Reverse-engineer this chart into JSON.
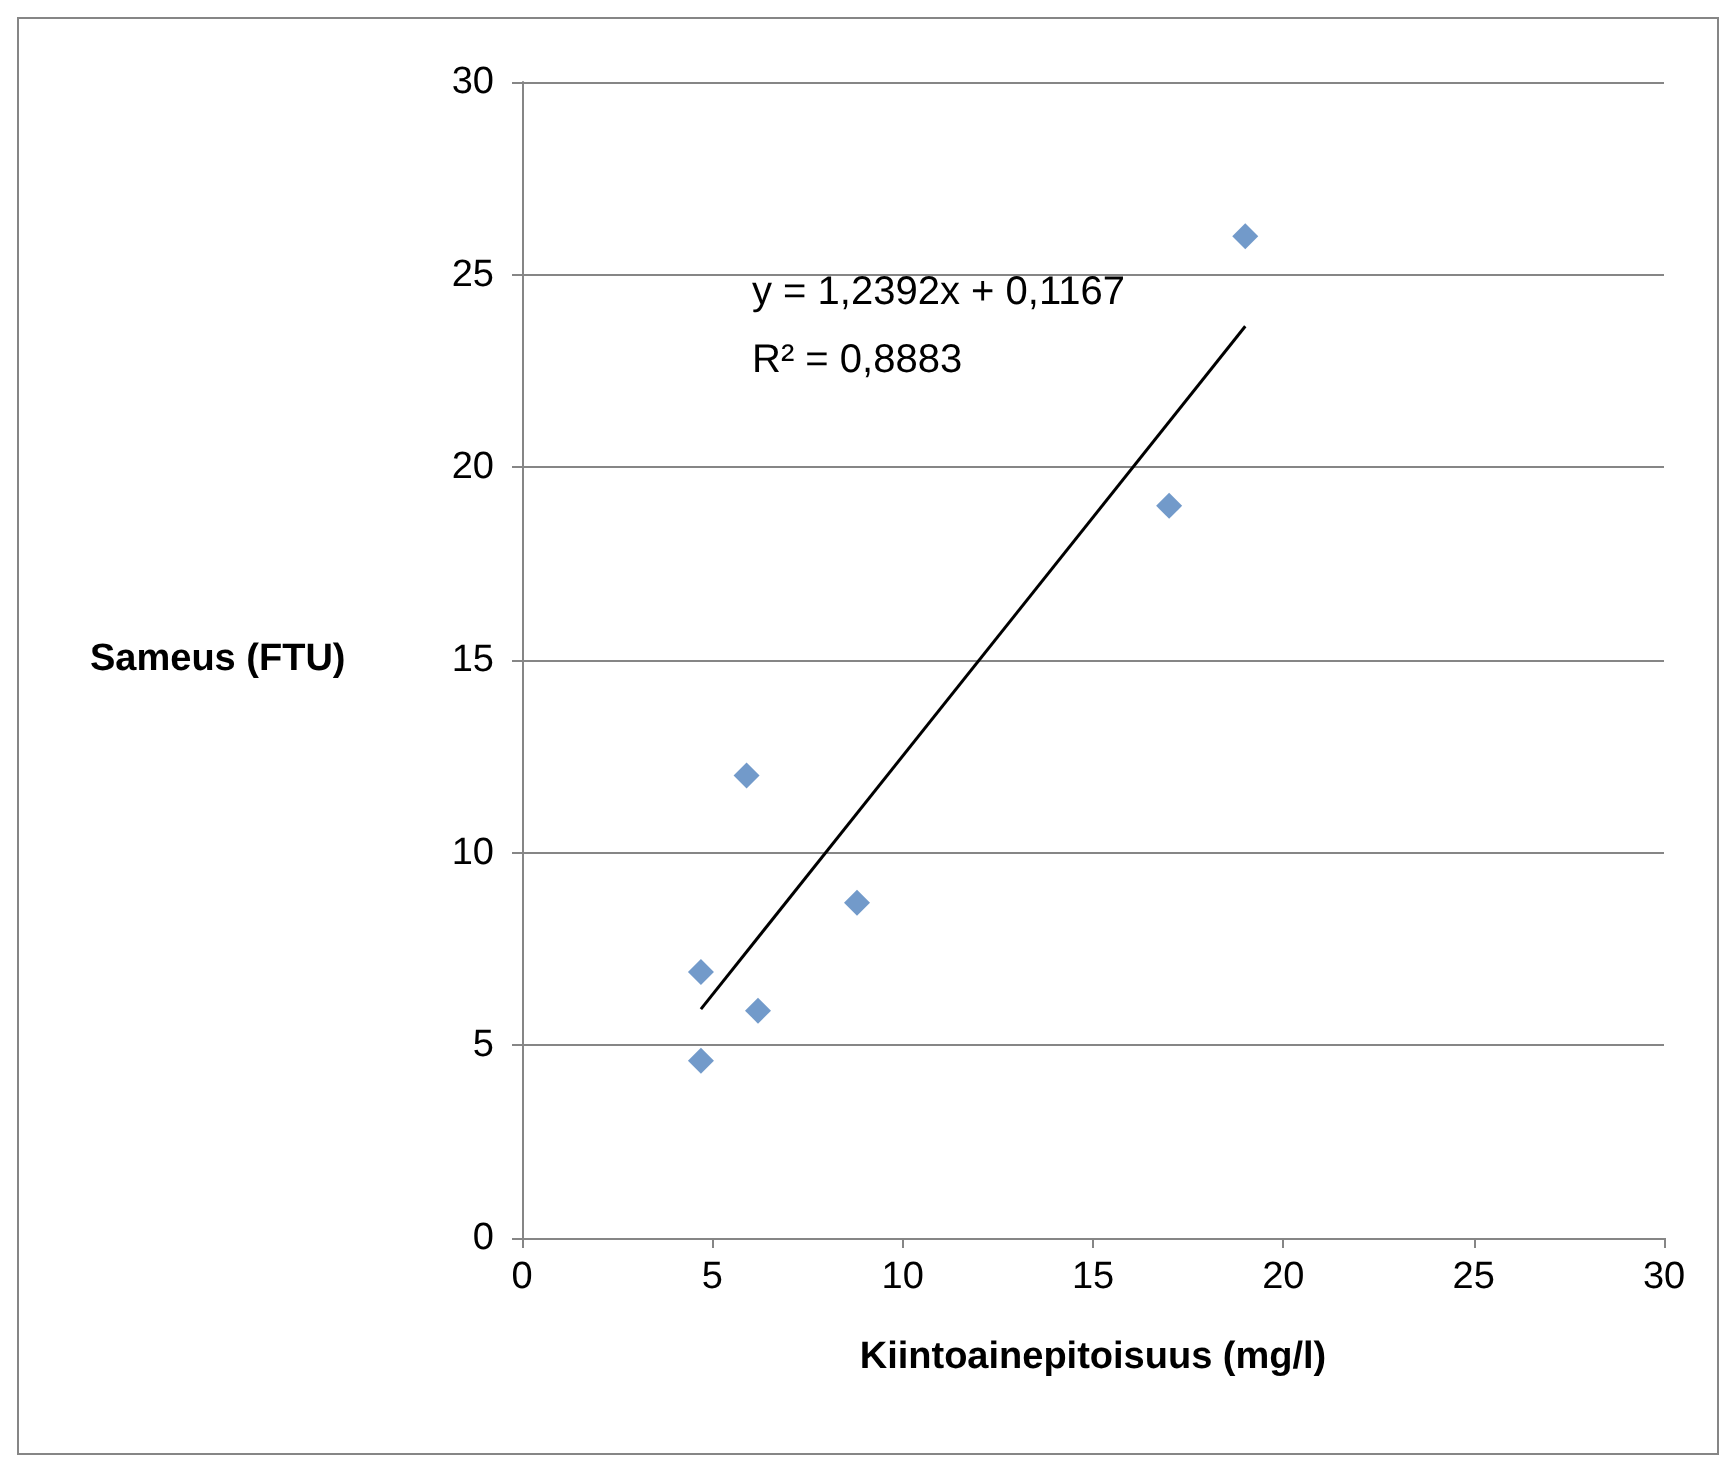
{
  "chart_data": {
    "type": "scatter",
    "xlabel": "Kiintoainepitoisuus (mg/l)",
    "ylabel": "Sameus (FTU)",
    "x": [
      4.7,
      4.7,
      5.9,
      6.2,
      8.8,
      17,
      19
    ],
    "series": [
      {
        "color": "#4f81bd",
        "marker": "diamond",
        "values": [
          6.9,
          4.6,
          12,
          5.9,
          8.7,
          19,
          26
        ]
      },
      {
        "type": "line",
        "color": "#000000",
        "marker": "none",
        "x": [
          4.7,
          19
        ],
        "values": [
          5.94,
          23.66
        ]
      }
    ],
    "xlim": [
      0,
      30
    ],
    "xticks": [
      0,
      5,
      10,
      15,
      20,
      25,
      30
    ],
    "ylim": [
      0,
      30
    ],
    "yticks": [
      0,
      5,
      10,
      15,
      20,
      25,
      30
    ],
    "grid": "y",
    "annotations": [
      "y = 1,2392x + 0,1167",
      "R² = 0,8883"
    ]
  }
}
